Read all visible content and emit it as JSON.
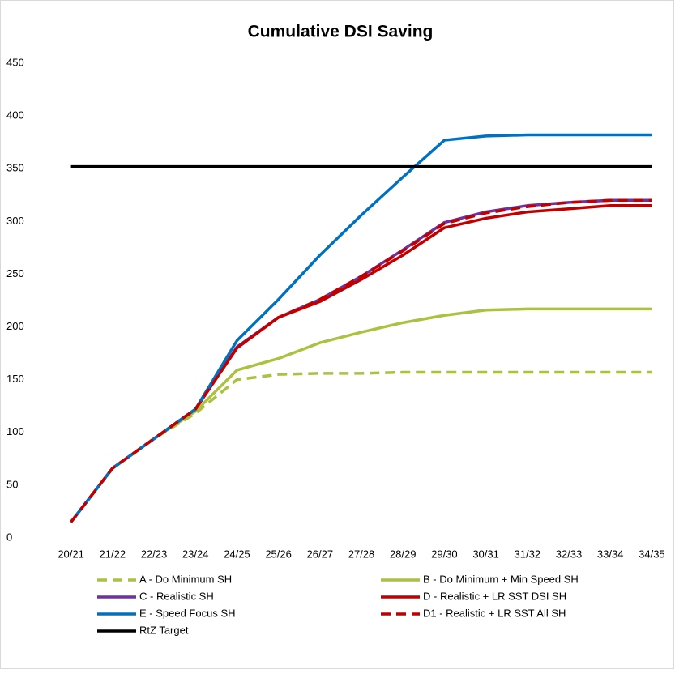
{
  "chart_data": {
    "type": "line",
    "title": "Cumulative DSI Saving",
    "categories": [
      "20/21",
      "21/22",
      "22/23",
      "23/24",
      "24/25",
      "25/26",
      "26/27",
      "27/28",
      "28/29",
      "29/30",
      "30/31",
      "31/32",
      "32/33",
      "33/34",
      "34/35"
    ],
    "ylim": [
      0,
      450
    ],
    "yticks": [
      0,
      50,
      100,
      150,
      200,
      250,
      300,
      350,
      400,
      450
    ],
    "grid": false,
    "legend": "bottom",
    "series": [
      {
        "name": "A - Do Minimum SH",
        "color": "#a9c23f",
        "dashed": true,
        "values": [
          15,
          66,
          94,
          118,
          150,
          155,
          156,
          156,
          157,
          157,
          157,
          157,
          157,
          157,
          157
        ]
      },
      {
        "name": "B - Do Minimum + Min Speed SH",
        "color": "#a9c23f",
        "dashed": false,
        "values": [
          15,
          66,
          94,
          120,
          159,
          170,
          185,
          195,
          204,
          211,
          216,
          217,
          217,
          217,
          217
        ]
      },
      {
        "name": "C - Realistic SH",
        "color": "#7030a0",
        "dashed": false,
        "values": [
          15,
          66,
          94,
          122,
          181,
          209,
          226,
          248,
          273,
          299,
          309,
          315,
          318,
          320,
          320
        ]
      },
      {
        "name": "D - Realistic + LR SST DSI SH",
        "color": "#c00000",
        "dashed": false,
        "values": [
          15,
          66,
          94,
          122,
          180,
          209,
          224,
          245,
          268,
          294,
          303,
          309,
          312,
          315,
          315
        ]
      },
      {
        "name": "E - Speed Focus SH",
        "color": "#0070c0",
        "dashed": false,
        "values": [
          15,
          66,
          94,
          122,
          187,
          226,
          268,
          306,
          342,
          377,
          381,
          382,
          382,
          382,
          382
        ]
      },
      {
        "name": "D1 - Realistic + LR SST All SH",
        "color": "#c00000",
        "dashed": true,
        "values": [
          15,
          66,
          94,
          122,
          180,
          209,
          226,
          248,
          272,
          298,
          308,
          314,
          318,
          320,
          320
        ]
      },
      {
        "name": "RtZ Target",
        "color": "#000000",
        "dashed": false,
        "values": [
          352,
          352,
          352,
          352,
          352,
          352,
          352,
          352,
          352,
          352,
          352,
          352,
          352,
          352,
          352
        ]
      }
    ]
  }
}
